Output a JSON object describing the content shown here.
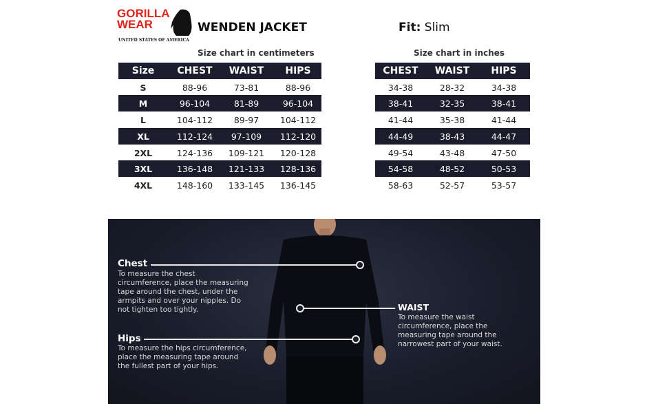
{
  "brand": {
    "logo_line1": "GORILLA",
    "logo_line2": "WEAR",
    "logo_sub": "UNITED STATES OF AMERICA"
  },
  "product": {
    "title": "WENDEN JACKET",
    "fit_label": "Fit:",
    "fit_value": "Slim"
  },
  "cm_chart": {
    "caption": "Size chart in centimeters",
    "headers": [
      "Size",
      "CHEST",
      "WAIST",
      "HIPS"
    ],
    "rows": [
      [
        "S",
        "88-96",
        "73-81",
        "88-96"
      ],
      [
        "M",
        "96-104",
        "81-89",
        "96-104"
      ],
      [
        "L",
        "104-112",
        "89-97",
        "104-112"
      ],
      [
        "XL",
        "112-124",
        "97-109",
        "112-120"
      ],
      [
        "2XL",
        "124-136",
        "109-121",
        "120-128"
      ],
      [
        "3XL",
        "136-148",
        "121-133",
        "128-136"
      ],
      [
        "4XL",
        "148-160",
        "133-145",
        "136-145"
      ]
    ]
  },
  "inch_chart": {
    "caption": "Size chart in inches",
    "headers": [
      "CHEST",
      "WAIST",
      "HIPS"
    ],
    "rows": [
      [
        "34-38",
        "28-32",
        "34-38"
      ],
      [
        "38-41",
        "32-35",
        "38-41"
      ],
      [
        "41-44",
        "35-38",
        "41-44"
      ],
      [
        "44-49",
        "38-43",
        "44-47"
      ],
      [
        "49-54",
        "43-48",
        "47-50"
      ],
      [
        "54-58",
        "48-52",
        "50-53"
      ],
      [
        "58-63",
        "52-57",
        "53-57"
      ]
    ]
  },
  "measure": {
    "chest": {
      "label": "Chest",
      "desc": "To measure the chest circumference, place the measuring tape around the chest, under the armpits and over your nipples. Do not tighten too tightly."
    },
    "waist": {
      "label": "WAIST",
      "desc": "To measure the waist circumference, place the measuring tape around the narrowest part of your waist."
    },
    "hips": {
      "label": "Hips",
      "desc": "To measure the hips circumference, place the measuring tape around the fullest part of your hips."
    }
  },
  "colors": {
    "brand_red": "#e2231a",
    "band": "#1b1c2c"
  }
}
